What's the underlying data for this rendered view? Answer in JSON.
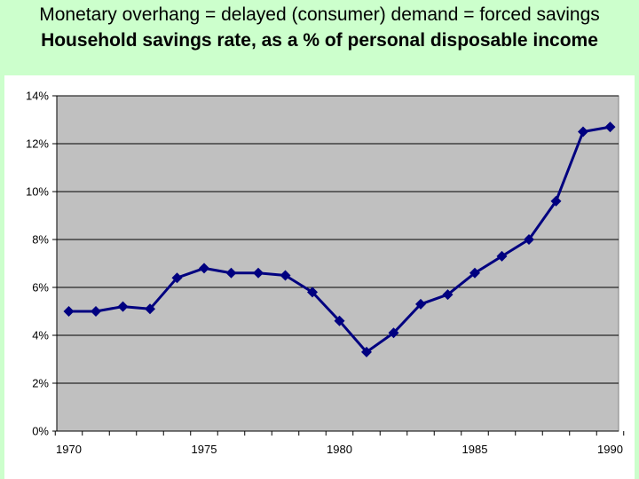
{
  "title": "Monetary overhang = delayed (consumer) demand = forced savings",
  "subtitle": "Household savings rate, as a % of personal disposable income",
  "colors": {
    "slide_background": "#ccffcc",
    "plot_background": "#c0c0c0",
    "series_line": "#000080",
    "gridline": "#000000"
  },
  "chart_data": {
    "type": "line",
    "title": "Household savings rate, as a % of personal disposable income",
    "xlabel": "",
    "ylabel": "",
    "x": [
      1970,
      1971,
      1972,
      1973,
      1974,
      1975,
      1976,
      1977,
      1978,
      1979,
      1980,
      1981,
      1982,
      1983,
      1984,
      1985,
      1986,
      1987,
      1988,
      1989,
      1990
    ],
    "series": [
      {
        "values": [
          5.0,
          5.0,
          5.2,
          5.1,
          6.4,
          6.8,
          6.6,
          6.6,
          6.5,
          5.8,
          4.6,
          3.3,
          4.1,
          5.3,
          5.7,
          6.6,
          7.3,
          8.0,
          9.6,
          12.5,
          12.7
        ],
        "marker": "diamond"
      }
    ],
    "xlim": [
      1969.5,
      1990.5
    ],
    "ylim": [
      0,
      14
    ],
    "x_ticks": [
      "1970",
      "1975",
      "1980",
      "1985",
      "1990"
    ],
    "y_ticks": [
      "0%",
      "2%",
      "4%",
      "6%",
      "8%",
      "10%",
      "12%",
      "14%"
    ],
    "y_tick_values": [
      0,
      2,
      4,
      6,
      8,
      10,
      12,
      14
    ],
    "x_tick_values": [
      1970,
      1975,
      1980,
      1985,
      1990
    ],
    "grid": "horizontal",
    "legend": "none"
  }
}
